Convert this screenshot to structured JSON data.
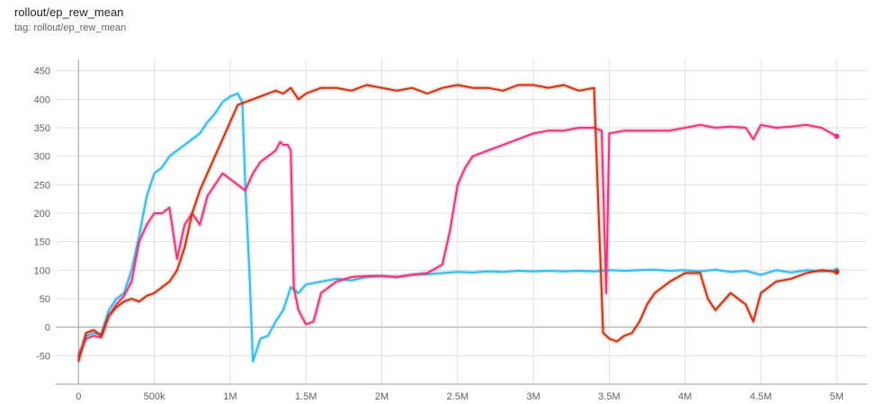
{
  "header": {
    "title": "rollout/ep_rew_mean",
    "subtitle": "tag: rollout/ep_rew_mean"
  },
  "chart_data": {
    "type": "line",
    "title": "rollout/ep_rew_mean",
    "xlabel": "",
    "ylabel": "",
    "xlim": [
      -150000,
      5200000
    ],
    "ylim": [
      -100,
      470
    ],
    "x_ticks": [
      {
        "value": 0,
        "label": "0"
      },
      {
        "value": 500000,
        "label": "500k"
      },
      {
        "value": 1000000,
        "label": "1M"
      },
      {
        "value": 1500000,
        "label": "1.5M"
      },
      {
        "value": 2000000,
        "label": "2M"
      },
      {
        "value": 2500000,
        "label": "2.5M"
      },
      {
        "value": 3000000,
        "label": "3M"
      },
      {
        "value": 3500000,
        "label": "3.5M"
      },
      {
        "value": 4000000,
        "label": "4M"
      },
      {
        "value": 4500000,
        "label": "4.5M"
      },
      {
        "value": 5000000,
        "label": "5M"
      }
    ],
    "y_ticks": [
      {
        "value": -50,
        "label": "-50"
      },
      {
        "value": 0,
        "label": "0"
      },
      {
        "value": 50,
        "label": "50"
      },
      {
        "value": 100,
        "label": "100"
      },
      {
        "value": 150,
        "label": "150"
      },
      {
        "value": 200,
        "label": "200"
      },
      {
        "value": 250,
        "label": "250"
      },
      {
        "value": 300,
        "label": "300"
      },
      {
        "value": 350,
        "label": "350"
      },
      {
        "value": 400,
        "label": "400"
      },
      {
        "value": 450,
        "label": "450"
      }
    ],
    "grid": true,
    "colors": {
      "axis": "#9e9e9e",
      "grid": "#e0e0e0",
      "zero_line": "#9e9e9e"
    },
    "series": [
      {
        "color": "#33bbee",
        "x": [
          0,
          50000,
          100000,
          150000,
          200000,
          250000,
          300000,
          350000,
          400000,
          450000,
          500000,
          550000,
          600000,
          650000,
          700000,
          750000,
          800000,
          850000,
          900000,
          950000,
          1000000,
          1050000,
          1080000,
          1100000,
          1130000,
          1150000,
          1200000,
          1250000,
          1300000,
          1350000,
          1400000,
          1450000,
          1500000,
          1600000,
          1700000,
          1800000,
          1900000,
          2000000,
          2100000,
          2200000,
          2300000,
          2400000,
          2500000,
          2600000,
          2700000,
          2800000,
          2900000,
          3000000,
          3100000,
          3200000,
          3300000,
          3400000,
          3500000,
          3600000,
          3700000,
          3800000,
          3900000,
          4000000,
          4100000,
          4200000,
          4300000,
          4400000,
          4500000,
          4600000,
          4700000,
          4800000,
          4900000,
          5000000
        ],
        "values": [
          -55,
          -15,
          -10,
          -12,
          30,
          50,
          60,
          100,
          160,
          230,
          270,
          280,
          300,
          310,
          320,
          330,
          340,
          360,
          375,
          395,
          405,
          410,
          395,
          250,
          80,
          -60,
          -20,
          -15,
          10,
          30,
          70,
          60,
          75,
          80,
          85,
          82,
          88,
          90,
          88,
          92,
          93,
          95,
          97,
          96,
          98,
          97,
          99,
          98,
          99,
          98,
          99,
          98,
          100,
          99,
          100,
          101,
          99,
          100,
          98,
          101,
          97,
          99,
          92,
          100,
          96,
          100,
          98,
          100
        ]
      },
      {
        "color": "#ee3377",
        "x": [
          0,
          50000,
          100000,
          150000,
          200000,
          250000,
          300000,
          350000,
          400000,
          450000,
          500000,
          550000,
          600000,
          650000,
          700000,
          750000,
          800000,
          850000,
          900000,
          950000,
          1000000,
          1050000,
          1100000,
          1150000,
          1200000,
          1250000,
          1300000,
          1330000,
          1350000,
          1380000,
          1400000,
          1420000,
          1450000,
          1500000,
          1550000,
          1600000,
          1700000,
          1800000,
          1900000,
          2000000,
          2100000,
          2200000,
          2300000,
          2400000,
          2450000,
          2500000,
          2550000,
          2600000,
          2700000,
          2800000,
          2900000,
          3000000,
          3100000,
          3200000,
          3300000,
          3400000,
          3450000,
          3480000,
          3500000,
          3600000,
          3700000,
          3800000,
          3900000,
          4000000,
          4100000,
          4200000,
          4300000,
          4400000,
          4450000,
          4500000,
          4600000,
          4700000,
          4800000,
          4900000,
          5000000
        ],
        "values": [
          -50,
          -20,
          -15,
          -18,
          20,
          40,
          55,
          80,
          150,
          180,
          200,
          200,
          210,
          120,
          180,
          200,
          180,
          230,
          250,
          270,
          260,
          250,
          240,
          270,
          290,
          300,
          310,
          325,
          320,
          320,
          310,
          70,
          30,
          5,
          10,
          60,
          80,
          88,
          90,
          90,
          88,
          92,
          95,
          110,
          170,
          250,
          280,
          300,
          310,
          320,
          330,
          340,
          345,
          345,
          350,
          350,
          345,
          60,
          340,
          345,
          345,
          345,
          345,
          350,
          355,
          350,
          352,
          350,
          330,
          355,
          350,
          352,
          355,
          350,
          335
        ]
      },
      {
        "color": "#cc3311",
        "x": [
          0,
          50000,
          100000,
          150000,
          200000,
          250000,
          300000,
          350000,
          400000,
          450000,
          500000,
          550000,
          600000,
          650000,
          700000,
          750000,
          800000,
          850000,
          900000,
          950000,
          1000000,
          1050000,
          1100000,
          1150000,
          1200000,
          1250000,
          1300000,
          1350000,
          1400000,
          1450000,
          1500000,
          1600000,
          1700000,
          1800000,
          1900000,
          2000000,
          2100000,
          2200000,
          2300000,
          2400000,
          2500000,
          2600000,
          2700000,
          2800000,
          2900000,
          3000000,
          3100000,
          3200000,
          3300000,
          3400000,
          3430000,
          3460000,
          3500000,
          3550000,
          3600000,
          3650000,
          3700000,
          3750000,
          3800000,
          3900000,
          4000000,
          4100000,
          4150000,
          4200000,
          4300000,
          4400000,
          4450000,
          4500000,
          4600000,
          4700000,
          4800000,
          4900000,
          5000000
        ],
        "values": [
          -60,
          -10,
          -5,
          -15,
          20,
          35,
          45,
          50,
          45,
          55,
          60,
          70,
          80,
          100,
          140,
          200,
          240,
          270,
          300,
          330,
          360,
          390,
          395,
          400,
          405,
          410,
          415,
          410,
          420,
          400,
          410,
          420,
          420,
          415,
          425,
          420,
          415,
          420,
          410,
          420,
          425,
          420,
          420,
          415,
          425,
          425,
          420,
          425,
          415,
          420,
          200,
          -10,
          -20,
          -25,
          -15,
          -10,
          10,
          40,
          60,
          80,
          95,
          95,
          50,
          30,
          60,
          40,
          10,
          60,
          80,
          85,
          95,
          100,
          97
        ]
      }
    ]
  }
}
